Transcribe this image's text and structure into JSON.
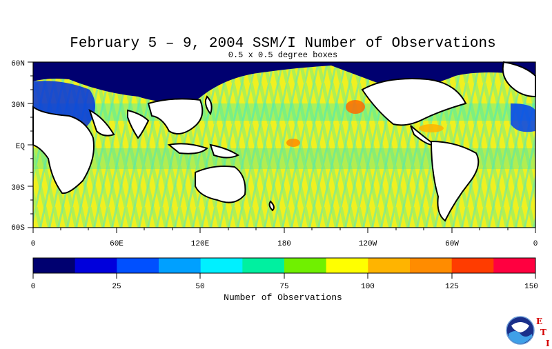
{
  "title": "February 5 – 9, 2004 SSM/I Number of Observations",
  "subtitle": "0.5 x 0.5 degree boxes",
  "map": {
    "lat_labels": [
      "60N",
      "30N",
      "EQ",
      "30S",
      "60S"
    ],
    "lon_labels": [
      "0",
      "60E",
      "120E",
      "180",
      "120W",
      "60W",
      "0"
    ],
    "lat_range": [
      -60,
      60
    ],
    "lon_range": [
      0,
      360
    ]
  },
  "colorbar": {
    "label": "Number of Observations",
    "tick_labels": [
      "0",
      "25",
      "50",
      "75",
      "100",
      "125",
      "150"
    ],
    "range": [
      0,
      150
    ],
    "colors": [
      "#000070",
      "#0000dc",
      "#0050ff",
      "#00a0ff",
      "#00f0ff",
      "#00f0a0",
      "#70f000",
      "#ffff00",
      "#ffb400",
      "#ff8c00",
      "#ff3c00",
      "#ff0040"
    ]
  },
  "logo": {
    "text": "NOAA",
    "letters": [
      "E",
      "T",
      "I"
    ]
  },
  "colors": {
    "land": "#ffffff",
    "coastline": "#000000",
    "ocean_base": "#ffff00"
  }
}
